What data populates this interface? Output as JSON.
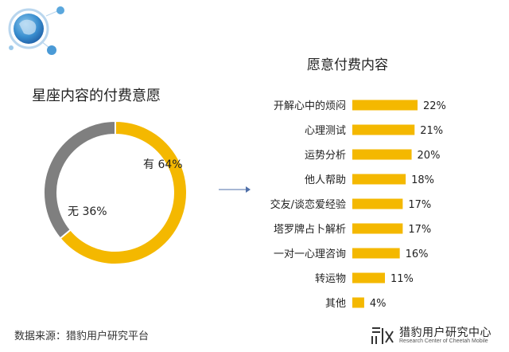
{
  "chart_data": [
    {
      "type": "pie",
      "title": "星座内容的付费意愿",
      "categories": [
        "有",
        "无"
      ],
      "values": [
        64,
        36
      ],
      "labels": [
        "有 64%",
        "无 36%"
      ],
      "colors": [
        "#f4b800",
        "#7f7f7f"
      ]
    },
    {
      "type": "bar",
      "orientation": "horizontal",
      "title": "愿意付费内容",
      "categories": [
        "开解心中的烦闷",
        "心理测试",
        "运势分析",
        "他人帮助",
        "交友/谈恋爱经验",
        "塔罗牌占卜解析",
        "一对一心理咨询",
        "转运物",
        "其他"
      ],
      "values": [
        22,
        21,
        20,
        18,
        17,
        17,
        16,
        11,
        4
      ],
      "value_labels": [
        "22%",
        "21%",
        "20%",
        "18%",
        "17%",
        "17%",
        "16%",
        "11%",
        "4%"
      ],
      "bar_color": "#f4b800",
      "xlim": [
        0,
        22
      ]
    }
  ],
  "footer": {
    "source": "数据来源：猎豹用户研究平台",
    "brand_name": "猎豹用户研究中心",
    "brand_sub": "Research Center of Cheetah Mobile"
  }
}
